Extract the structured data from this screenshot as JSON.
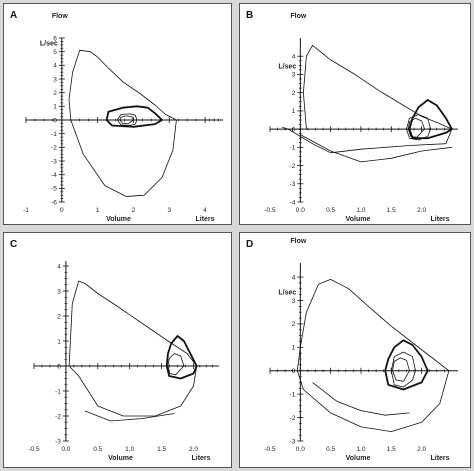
{
  "chart_data": [
    {
      "type": "line",
      "panel_label": "A",
      "ylabel_top": "Flow",
      "ylabel_unit": "L/sec",
      "xlabel": "Volume",
      "xunit": "Liters",
      "xlim": [
        -1,
        4.5
      ],
      "ylim": [
        -6,
        6
      ],
      "xticks": [
        {
          "v": -1,
          "label": "-1"
        },
        {
          "v": 0,
          "label": "0"
        },
        {
          "v": 1,
          "label": "1"
        },
        {
          "v": 2,
          "label": "2"
        },
        {
          "v": 3,
          "label": "3"
        },
        {
          "v": 4,
          "label": "4"
        }
      ],
      "yticks": [
        {
          "v": 6,
          "label": "6"
        },
        {
          "v": 5,
          "label": "5"
        },
        {
          "v": 4,
          "label": "4"
        },
        {
          "v": 3,
          "label": "3"
        },
        {
          "v": 2,
          "label": "2"
        },
        {
          "v": 1,
          "label": "1"
        },
        {
          "v": 0,
          "label": "0"
        },
        {
          "v": -1,
          "label": "-1"
        },
        {
          "v": -2,
          "label": "-2"
        },
        {
          "v": -3,
          "label": "-3"
        },
        {
          "v": -4,
          "label": "-4"
        },
        {
          "v": -5,
          "label": "-5"
        },
        {
          "v": -6,
          "label": "-6"
        }
      ],
      "series": [
        {
          "style": "thin",
          "points": [
            [
              3.2,
              0
            ],
            [
              2.9,
              0.4
            ],
            [
              2.6,
              1.1
            ],
            [
              2.2,
              1.9
            ],
            [
              1.7,
              2.8
            ],
            [
              1.3,
              3.8
            ],
            [
              1.0,
              4.6
            ],
            [
              0.8,
              5.0
            ],
            [
              0.5,
              5.1
            ],
            [
              0.3,
              3.5
            ],
            [
              0.2,
              1.5
            ],
            [
              0.25,
              0
            ],
            [
              0.6,
              -2.5
            ],
            [
              1.2,
              -4.8
            ],
            [
              1.8,
              -5.6
            ],
            [
              2.3,
              -5.5
            ],
            [
              2.8,
              -4.2
            ],
            [
              3.1,
              -2.2
            ],
            [
              3.2,
              0
            ]
          ]
        },
        {
          "style": "thick",
          "points": [
            [
              2.8,
              0
            ],
            [
              2.6,
              0.5
            ],
            [
              2.4,
              0.9
            ],
            [
              2.1,
              1.0
            ],
            [
              1.7,
              0.9
            ],
            [
              1.3,
              0.6
            ],
            [
              1.25,
              0
            ],
            [
              1.4,
              -0.4
            ],
            [
              2.0,
              -0.5
            ],
            [
              2.6,
              -0.3
            ],
            [
              2.8,
              0
            ]
          ]
        },
        {
          "style": "thin",
          "points": [
            [
              2.1,
              0
            ],
            [
              2.05,
              0.35
            ],
            [
              1.9,
              0.45
            ],
            [
              1.65,
              0.4
            ],
            [
              1.55,
              0
            ],
            [
              1.65,
              -0.35
            ],
            [
              1.9,
              -0.4
            ],
            [
              2.05,
              -0.3
            ],
            [
              2.1,
              0
            ]
          ]
        },
        {
          "style": "thin",
          "points": [
            [
              2.0,
              0
            ],
            [
              1.95,
              0.25
            ],
            [
              1.8,
              0.3
            ],
            [
              1.65,
              0.2
            ],
            [
              1.62,
              0
            ],
            [
              1.7,
              -0.25
            ],
            [
              1.85,
              -0.28
            ],
            [
              2.0,
              0
            ]
          ]
        }
      ]
    },
    {
      "type": "line",
      "panel_label": "B",
      "ylabel_top": "Flow",
      "ylabel_unit": "L/sec",
      "xlabel": "Volume",
      "xunit": "Liters",
      "xlim": [
        -0.5,
        2.6
      ],
      "ylim": [
        -4,
        5
      ],
      "xticks": [
        {
          "v": -0.5,
          "label": "-0.5"
        },
        {
          "v": 0,
          "label": "0.0"
        },
        {
          "v": 0.5,
          "label": "0.5"
        },
        {
          "v": 1.0,
          "label": "1.0"
        },
        {
          "v": 1.5,
          "label": "1.5"
        },
        {
          "v": 2.0,
          "label": "2.0"
        }
      ],
      "yticks": [
        {
          "v": 4,
          "label": "4"
        },
        {
          "v": 3,
          "label": "3"
        },
        {
          "v": 2,
          "label": "2"
        },
        {
          "v": 1,
          "label": "1"
        },
        {
          "v": 0,
          "label": "0"
        },
        {
          "v": -1,
          "label": "-1"
        },
        {
          "v": -2,
          "label": "-2"
        },
        {
          "v": -3,
          "label": "-3"
        },
        {
          "v": -4,
          "label": "-4"
        }
      ],
      "series": [
        {
          "style": "thin",
          "points": [
            [
              0.1,
              0
            ],
            [
              0.05,
              2.0
            ],
            [
              0.1,
              4.0
            ],
            [
              0.2,
              4.6
            ],
            [
              0.5,
              3.8
            ],
            [
              0.9,
              3.0
            ],
            [
              1.3,
              2.1
            ],
            [
              1.7,
              1.3
            ],
            [
              2.0,
              0.7
            ],
            [
              2.3,
              0.3
            ],
            [
              2.5,
              0
            ],
            [
              2.4,
              -0.8
            ],
            [
              1.8,
              -0.9
            ],
            [
              1.0,
              -1.1
            ],
            [
              0.5,
              -1.3
            ],
            [
              0.2,
              -0.8
            ],
            [
              -0.2,
              0
            ],
            [
              -0.3,
              0.1
            ]
          ]
        },
        {
          "style": "thin",
          "points": [
            [
              0.0,
              -0.3
            ],
            [
              0.5,
              -1.2
            ],
            [
              1.0,
              -1.8
            ],
            [
              1.5,
              -1.6
            ],
            [
              2.0,
              -1.2
            ],
            [
              2.5,
              -1.0
            ]
          ]
        },
        {
          "style": "thick",
          "points": [
            [
              2.5,
              0
            ],
            [
              2.4,
              0.6
            ],
            [
              2.25,
              1.3
            ],
            [
              2.1,
              1.6
            ],
            [
              1.95,
              1.2
            ],
            [
              1.85,
              0.6
            ],
            [
              1.8,
              0
            ],
            [
              1.85,
              -0.5
            ],
            [
              2.1,
              -0.5
            ],
            [
              2.4,
              -0.2
            ],
            [
              2.5,
              0
            ]
          ]
        },
        {
          "style": "thin",
          "points": [
            [
              2.15,
              0
            ],
            [
              2.1,
              0.6
            ],
            [
              1.95,
              0.8
            ],
            [
              1.8,
              0.6
            ],
            [
              1.75,
              0
            ],
            [
              1.8,
              -0.5
            ],
            [
              1.95,
              -0.6
            ],
            [
              2.1,
              -0.4
            ],
            [
              2.15,
              0
            ]
          ]
        },
        {
          "style": "thin",
          "points": [
            [
              2.05,
              0
            ],
            [
              2.0,
              0.45
            ],
            [
              1.9,
              0.6
            ],
            [
              1.8,
              0.4
            ],
            [
              1.78,
              0
            ],
            [
              1.82,
              -0.4
            ],
            [
              1.92,
              -0.45
            ],
            [
              2.05,
              0
            ]
          ]
        }
      ]
    },
    {
      "type": "line",
      "panel_label": "C",
      "ylabel_top": "",
      "ylabel_unit": "",
      "xlabel": "Volume",
      "xunit": "Liters",
      "xlim": [
        -0.5,
        2.4
      ],
      "ylim": [
        -3,
        4.2
      ],
      "xticks": [
        {
          "v": -0.5,
          "label": "-0.5"
        },
        {
          "v": 0,
          "label": "0.0"
        },
        {
          "v": 0.5,
          "label": "0.5"
        },
        {
          "v": 1.0,
          "label": "1.0"
        },
        {
          "v": 1.5,
          "label": "1.5"
        },
        {
          "v": 2.0,
          "label": "2.0"
        }
      ],
      "yticks": [
        {
          "v": 4,
          "label": "4"
        },
        {
          "v": 3,
          "label": "3"
        },
        {
          "v": 2,
          "label": "2"
        },
        {
          "v": 1,
          "label": "1"
        },
        {
          "v": 0,
          "label": "0"
        },
        {
          "v": -1,
          "label": "-1"
        },
        {
          "v": -2,
          "label": "-2"
        },
        {
          "v": -3,
          "label": "-3"
        }
      ],
      "series": [
        {
          "style": "thin",
          "points": [
            [
              2.05,
              0
            ],
            [
              1.9,
              0.5
            ],
            [
              1.6,
              1.0
            ],
            [
              1.2,
              1.7
            ],
            [
              0.8,
              2.4
            ],
            [
              0.5,
              2.9
            ],
            [
              0.3,
              3.3
            ],
            [
              0.2,
              3.4
            ],
            [
              0.1,
              2.5
            ],
            [
              0.05,
              0
            ],
            [
              0.2,
              -0.4
            ],
            [
              0.5,
              -1.6
            ],
            [
              0.9,
              -2.0
            ],
            [
              1.4,
              -2.0
            ],
            [
              1.8,
              -1.6
            ],
            [
              2.0,
              -0.8
            ],
            [
              2.05,
              0
            ]
          ]
        },
        {
          "style": "thin",
          "points": [
            [
              0.3,
              -1.8
            ],
            [
              0.7,
              -2.2
            ],
            [
              1.2,
              -2.1
            ],
            [
              1.7,
              -1.9
            ]
          ]
        },
        {
          "style": "thick",
          "points": [
            [
              2.05,
              0
            ],
            [
              1.95,
              0.5
            ],
            [
              1.85,
              1.0
            ],
            [
              1.75,
              1.2
            ],
            [
              1.65,
              0.9
            ],
            [
              1.6,
              0.5
            ],
            [
              1.58,
              0
            ],
            [
              1.62,
              -0.4
            ],
            [
              1.8,
              -0.5
            ],
            [
              2.0,
              -0.3
            ],
            [
              2.05,
              0
            ]
          ]
        },
        {
          "style": "thin",
          "points": [
            [
              1.85,
              0
            ],
            [
              1.8,
              0.4
            ],
            [
              1.7,
              0.5
            ],
            [
              1.62,
              0.3
            ],
            [
              1.6,
              0
            ],
            [
              1.63,
              -0.3
            ],
            [
              1.72,
              -0.35
            ],
            [
              1.85,
              0
            ]
          ]
        }
      ]
    },
    {
      "type": "line",
      "panel_label": "D",
      "ylabel_top": "Flow",
      "ylabel_unit": "L/sec",
      "xlabel": "Volume",
      "xunit": "Liters",
      "xlim": [
        -0.5,
        2.6
      ],
      "ylim": [
        -3,
        4.6
      ],
      "xticks": [
        {
          "v": -0.5,
          "label": "-0.5"
        },
        {
          "v": 0,
          "label": "0.0"
        },
        {
          "v": 0.5,
          "label": "0.5"
        },
        {
          "v": 1.0,
          "label": "1.0"
        },
        {
          "v": 1.5,
          "label": "1.5"
        },
        {
          "v": 2.0,
          "label": "2.0"
        }
      ],
      "yticks": [
        {
          "v": 4,
          "label": "4"
        },
        {
          "v": 3,
          "label": "3"
        },
        {
          "v": 2,
          "label": "2"
        },
        {
          "v": 1,
          "label": "1"
        },
        {
          "v": 0,
          "label": "0"
        },
        {
          "v": -1,
          "label": "-1"
        },
        {
          "v": -2,
          "label": "-2"
        },
        {
          "v": -3,
          "label": "-3"
        }
      ],
      "series": [
        {
          "style": "thin",
          "points": [
            [
              2.45,
              0
            ],
            [
              2.2,
              0.5
            ],
            [
              1.9,
              1.1
            ],
            [
              1.5,
              1.9
            ],
            [
              1.1,
              2.8
            ],
            [
              0.8,
              3.5
            ],
            [
              0.5,
              3.9
            ],
            [
              0.3,
              3.7
            ],
            [
              0.1,
              2.5
            ],
            [
              0.0,
              1.0
            ],
            [
              -0.05,
              0
            ],
            [
              0.05,
              -0.8
            ],
            [
              0.5,
              -1.8
            ],
            [
              1.0,
              -2.4
            ],
            [
              1.5,
              -2.6
            ],
            [
              2.0,
              -2.2
            ],
            [
              2.3,
              -1.4
            ],
            [
              2.45,
              0
            ]
          ]
        },
        {
          "style": "thin",
          "points": [
            [
              0.2,
              -0.5
            ],
            [
              0.6,
              -1.3
            ],
            [
              1.0,
              -1.7
            ],
            [
              1.4,
              -1.9
            ],
            [
              1.8,
              -1.8
            ]
          ]
        },
        {
          "style": "thick",
          "points": [
            [
              2.1,
              0
            ],
            [
              2.0,
              0.6
            ],
            [
              1.85,
              1.1
            ],
            [
              1.7,
              1.3
            ],
            [
              1.55,
              1.0
            ],
            [
              1.45,
              0.5
            ],
            [
              1.4,
              0
            ],
            [
              1.45,
              -0.6
            ],
            [
              1.7,
              -0.8
            ],
            [
              2.0,
              -0.5
            ],
            [
              2.1,
              0
            ]
          ]
        },
        {
          "style": "thin",
          "points": [
            [
              1.9,
              0
            ],
            [
              1.85,
              0.6
            ],
            [
              1.7,
              0.8
            ],
            [
              1.55,
              0.6
            ],
            [
              1.5,
              0
            ],
            [
              1.55,
              -0.6
            ],
            [
              1.7,
              -0.7
            ],
            [
              1.85,
              -0.4
            ],
            [
              1.9,
              0
            ]
          ]
        },
        {
          "style": "thin",
          "points": [
            [
              1.8,
              0
            ],
            [
              1.75,
              0.45
            ],
            [
              1.65,
              0.55
            ],
            [
              1.55,
              0.4
            ],
            [
              1.52,
              0
            ],
            [
              1.58,
              -0.4
            ],
            [
              1.7,
              -0.45
            ],
            [
              1.8,
              0
            ]
          ]
        }
      ]
    }
  ]
}
